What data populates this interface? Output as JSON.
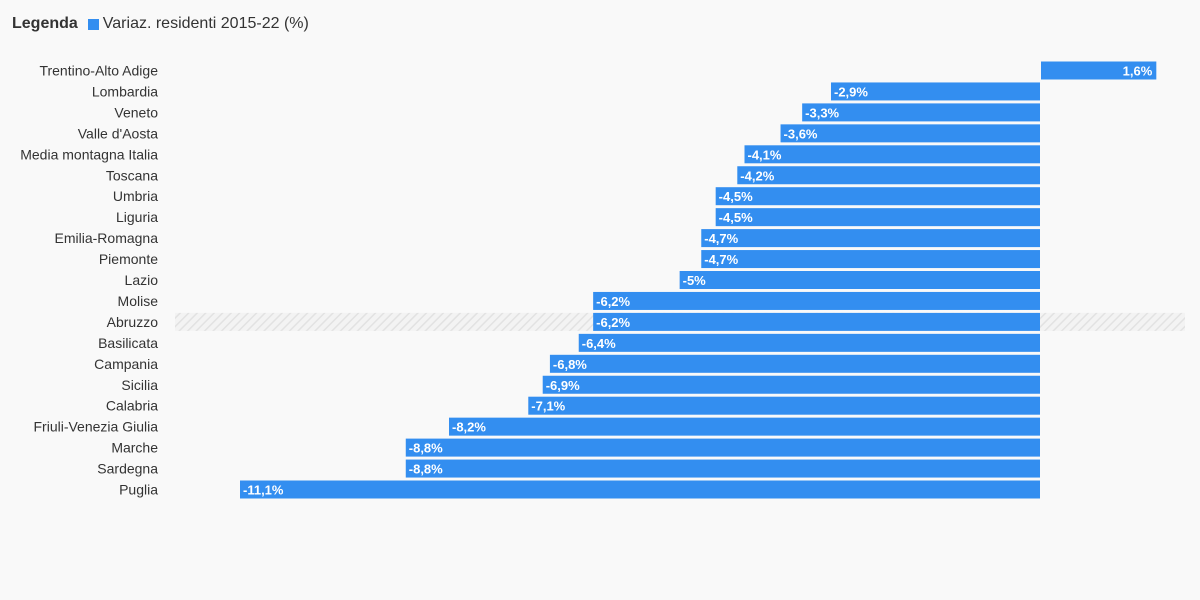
{
  "legend": {
    "title": "Legenda",
    "series_label": "Variaz. residenti 2015-22 (%)"
  },
  "colors": {
    "bar": "#338ef0",
    "highlight_row": "#ebebeb",
    "label_text": "#333333",
    "value_text": "#ffffff"
  },
  "chart_data": {
    "type": "bar",
    "orientation": "horizontal",
    "categories": [
      "Trentino-Alto Adige",
      "Lombardia",
      "Veneto",
      "Valle d'Aosta",
      "Media montagna Italia",
      "Toscana",
      "Umbria",
      "Liguria",
      "Emilia-Romagna",
      "Piemonte",
      "Lazio",
      "Molise",
      "Abruzzo",
      "Basilicata",
      "Campania",
      "Sicilia",
      "Calabria",
      "Friuli-Venezia Giulia",
      "Marche",
      "Sardegna",
      "Puglia"
    ],
    "series": [
      {
        "name": "Variaz. residenti 2015-22 (%)",
        "values": [
          1.6,
          -2.9,
          -3.3,
          -3.6,
          -4.1,
          -4.2,
          -4.5,
          -4.5,
          -4.7,
          -4.7,
          -5,
          -6.2,
          -6.2,
          -6.4,
          -6.8,
          -6.9,
          -7.1,
          -8.2,
          -8.8,
          -8.8,
          -11.1
        ]
      }
    ],
    "value_labels": [
      "1,6%",
      "-2,9%",
      "-3,3%",
      "-3,6%",
      "-4,1%",
      "-4,2%",
      "-4,5%",
      "-4,5%",
      "-4,7%",
      "-4,7%",
      "-5%",
      "-6,2%",
      "-6,2%",
      "-6,4%",
      "-6,8%",
      "-6,9%",
      "-7,1%",
      "-8,2%",
      "-8,8%",
      "-8,8%",
      "-11,1%"
    ],
    "highlighted_category": "Abruzzo",
    "xlim": [
      -11.1,
      1.6
    ],
    "grid": false,
    "legend_position": "top-left"
  }
}
